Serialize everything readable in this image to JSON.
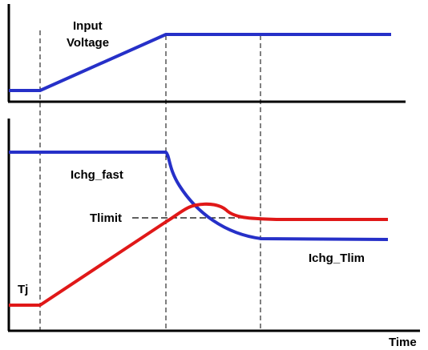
{
  "labels": {
    "input_voltage_line1": "Input",
    "input_voltage_line2": "Voltage",
    "ichg_fast": "Ichg_fast",
    "tlimit": "Tlimit",
    "ichg_tlim": "Ichg_Tlim",
    "tj": "Tj",
    "time": "Time"
  },
  "colors": {
    "voltage": "#2630c8",
    "current": "#2630c8",
    "temperature": "#e01818",
    "axes": "#000000",
    "guides": "#000000"
  }
}
